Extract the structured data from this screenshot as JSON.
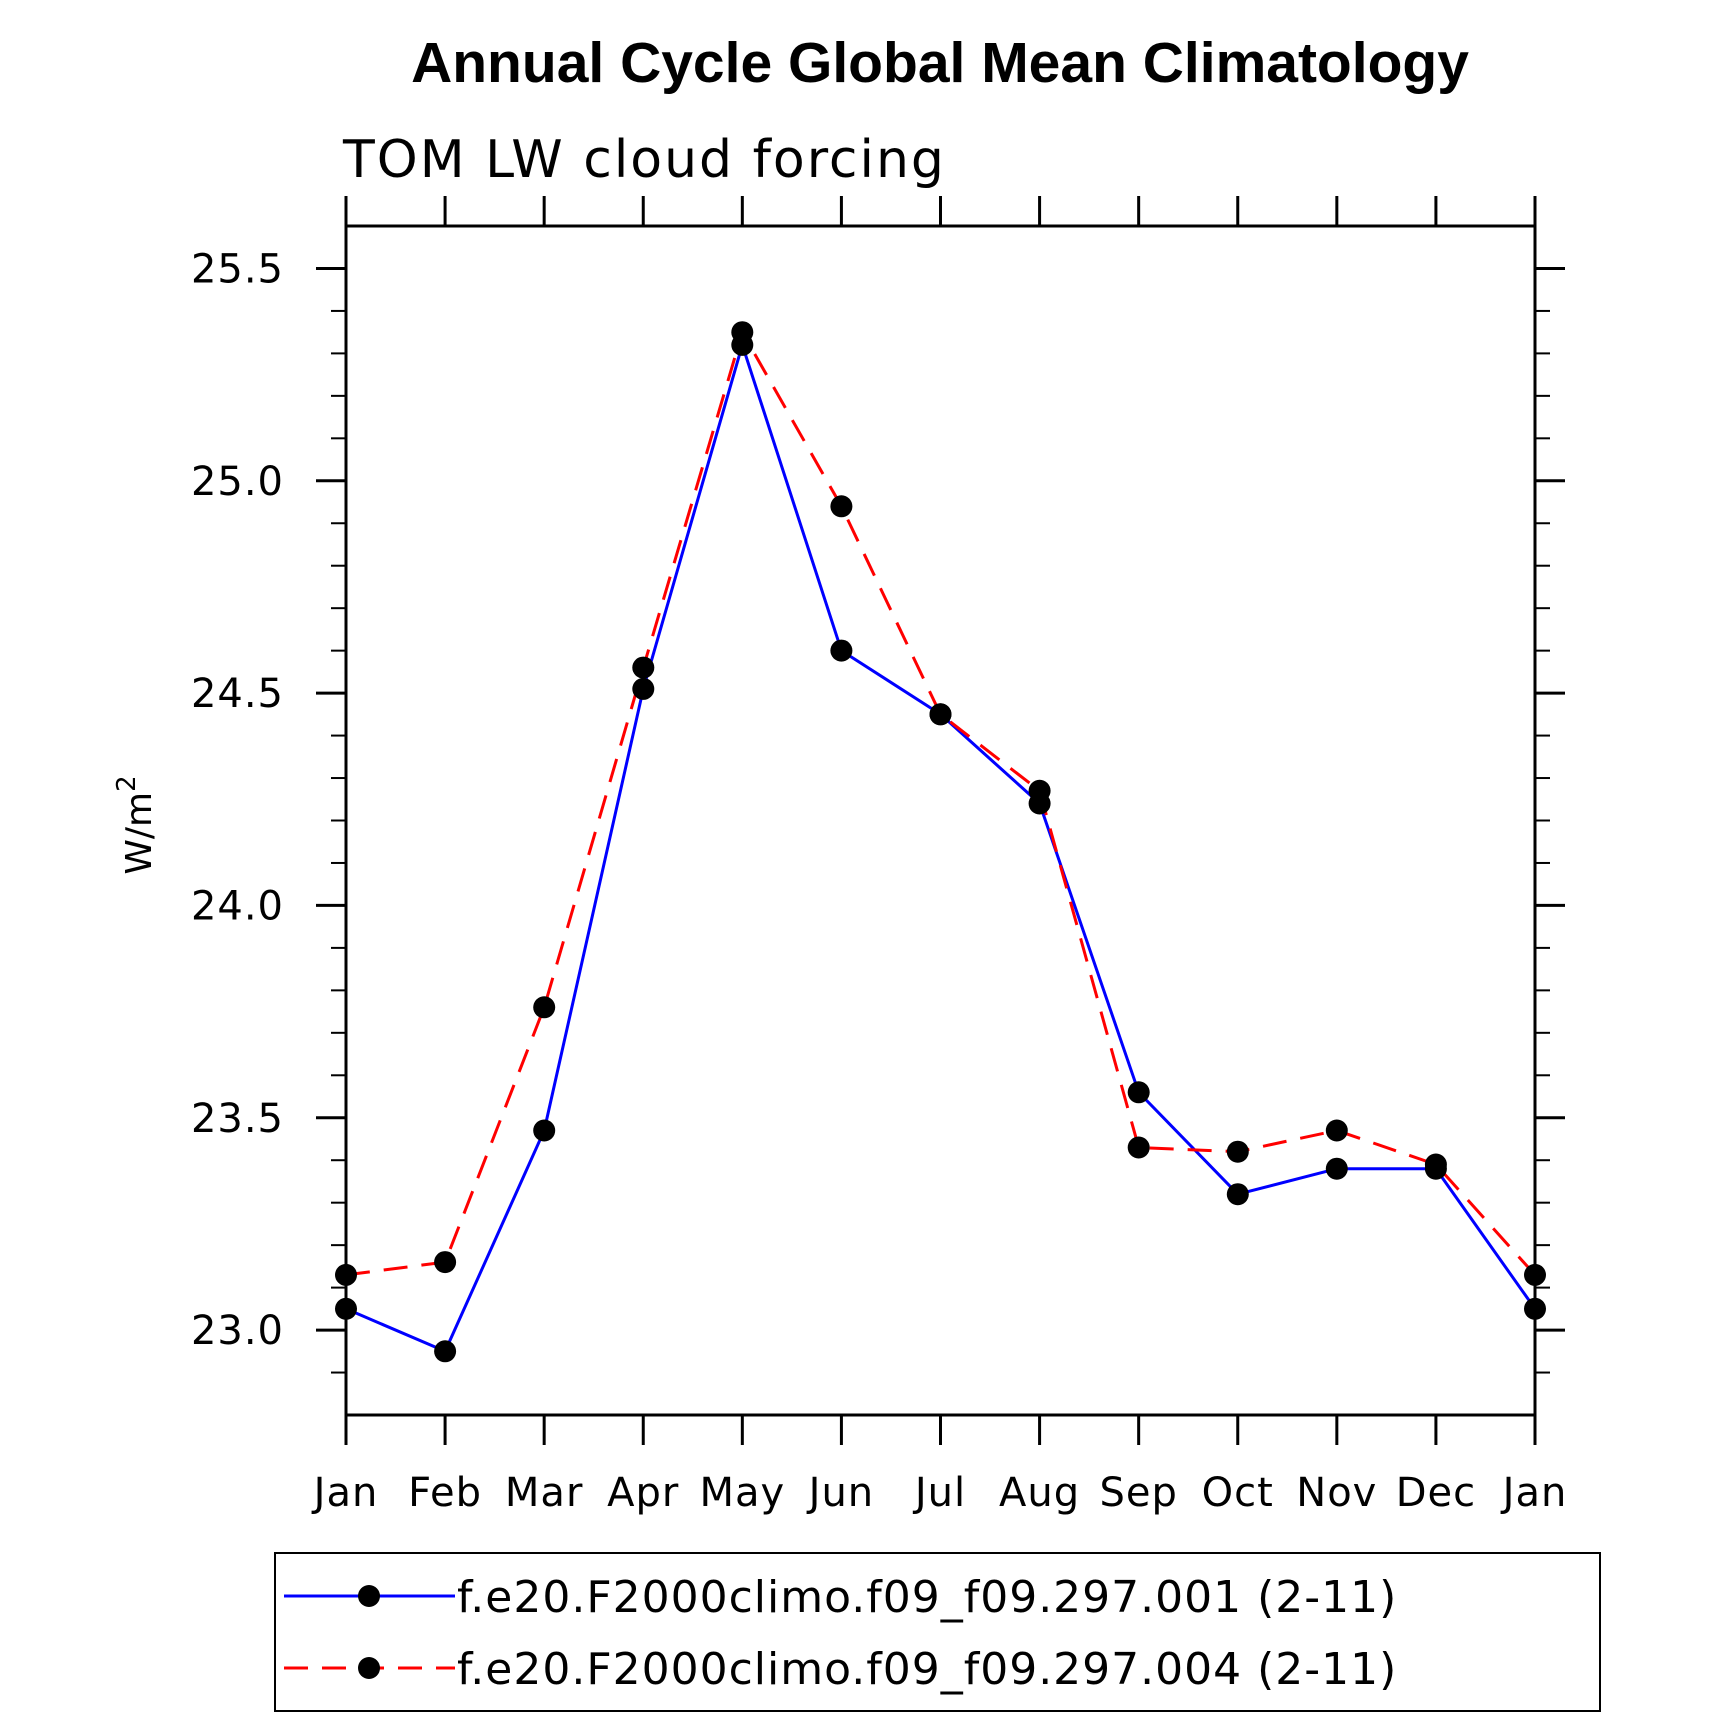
{
  "chart_data": {
    "type": "line",
    "title": "Annual Cycle Global Mean Climatology",
    "subtitle": "TOM LW cloud forcing",
    "xlabel": "",
    "ylabel": "W/m",
    "ylabel_superscript": "2",
    "categories": [
      "Jan",
      "Feb",
      "Mar",
      "Apr",
      "May",
      "Jun",
      "Jul",
      "Aug",
      "Sep",
      "Oct",
      "Nov",
      "Dec",
      "Jan"
    ],
    "ylim": [
      22.8,
      25.6
    ],
    "yticks": [
      23.0,
      23.5,
      24.0,
      24.5,
      25.0,
      25.5
    ],
    "ytick_labels": [
      "23.0",
      "23.5",
      "24.0",
      "24.5",
      "25.0",
      "25.5"
    ],
    "y_minor_step": 0.1,
    "grid": false,
    "legend_position": "bottom",
    "series": [
      {
        "name": "f.e20.F2000climo.f09_f09.297.001 (2-11)",
        "color": "#0000ff",
        "style": "solid",
        "marker": "filled-circle",
        "values": [
          23.05,
          22.95,
          23.47,
          24.51,
          25.32,
          24.6,
          24.45,
          24.24,
          23.56,
          23.32,
          23.38,
          23.38,
          23.05
        ]
      },
      {
        "name": "f.e20.F2000climo.f09_f09.297.004 (2-11)",
        "color": "#ff0000",
        "style": "dashed",
        "marker": "filled-circle",
        "values": [
          23.13,
          23.16,
          23.76,
          24.56,
          25.35,
          24.94,
          24.45,
          24.27,
          23.43,
          23.42,
          23.47,
          23.39,
          23.13
        ]
      }
    ]
  }
}
